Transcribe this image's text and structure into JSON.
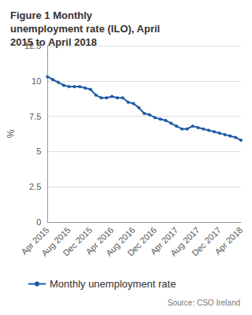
{
  "chart_data": {
    "type": "line",
    "title": "Figure 1 Monthly unemployment rate (ILO), April 2015 to April 2018",
    "y_label": "%",
    "source": "Source: CSO Ireland",
    "categories": [
      "Apr 2015",
      null,
      null,
      null,
      "Aug 2015",
      null,
      null,
      null,
      "Dec 2015",
      null,
      null,
      null,
      "Apr 2016",
      null,
      null,
      null,
      "Aug 2016",
      null,
      null,
      null,
      "Dec 2016",
      null,
      null,
      null,
      "Apr 2017",
      null,
      null,
      null,
      "Aug 2017",
      null,
      null,
      null,
      "Dec 2017",
      null,
      null,
      null,
      "Apr 2018"
    ],
    "series": [
      {
        "name": "Monthly unemployment rate",
        "color": "#1f5aa6",
        "marker": "circle",
        "line_style": "solid",
        "values": [
          10.3,
          10.1,
          9.9,
          9.7,
          9.6,
          9.6,
          9.6,
          9.5,
          9.4,
          9.0,
          8.8,
          8.8,
          8.9,
          8.8,
          8.8,
          8.5,
          8.4,
          8.1,
          7.7,
          7.6,
          7.4,
          7.3,
          7.2,
          7.0,
          6.8,
          6.6,
          6.6,
          6.8,
          6.7,
          6.6,
          6.5,
          6.4,
          6.3,
          6.2,
          6.1,
          6.0,
          5.8
        ]
      }
    ],
    "ylim": [
      0,
      12.5
    ],
    "yticks": [
      0,
      2.5,
      5,
      7.5,
      10,
      12.5
    ],
    "grid": true,
    "legend": "bottom"
  }
}
